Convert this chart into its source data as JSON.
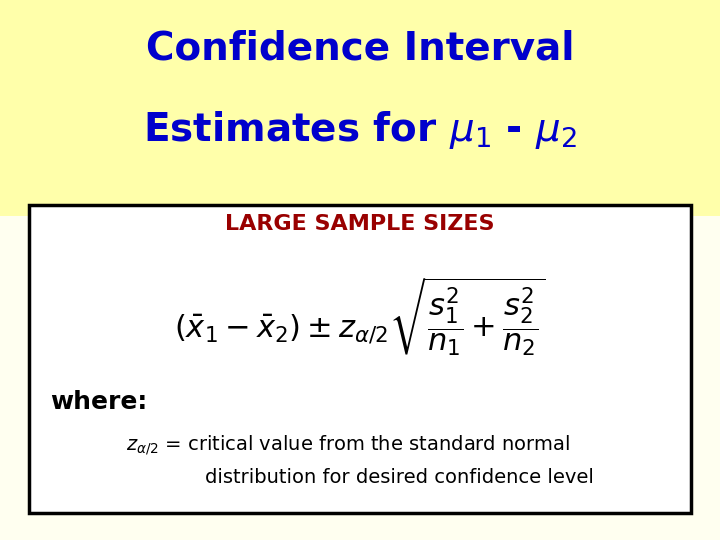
{
  "title_line1": "Confidence Interval",
  "title_line2": "Estimates for $\\mu_1$ - $\\mu_2$",
  "title_color": "#0000CC",
  "title_fontsize": 28,
  "bg_color_top": "#FFFFCC",
  "bg_color_bottom": "#FFFFF0",
  "box_bg": "#FFFFFF",
  "section_label": "LARGE SAMPLE SIZES",
  "section_label_color": "#990000",
  "section_label_fontsize": 16,
  "formula": "$(\\\\bar{x}_1 - \\\\bar{x}_2) \\\\pm z_{\\\\alpha/2}\\\\sqrt{\\\\dfrac{s_1^2}{n_1} + \\\\dfrac{s_2^2}{n_2}}$",
  "formula_fontsize": 22,
  "formula_color": "#000000",
  "where_text": "where:",
  "where_fontsize": 18,
  "where_color": "#000000",
  "note_line1_left": "$z_{\\\\alpha/2}$",
  "note_line1_right": " = critical value from the standard normal",
  "note_line2": "distribution for desired confidence level",
  "note_fontsize": 14,
  "note_color": "#000000"
}
